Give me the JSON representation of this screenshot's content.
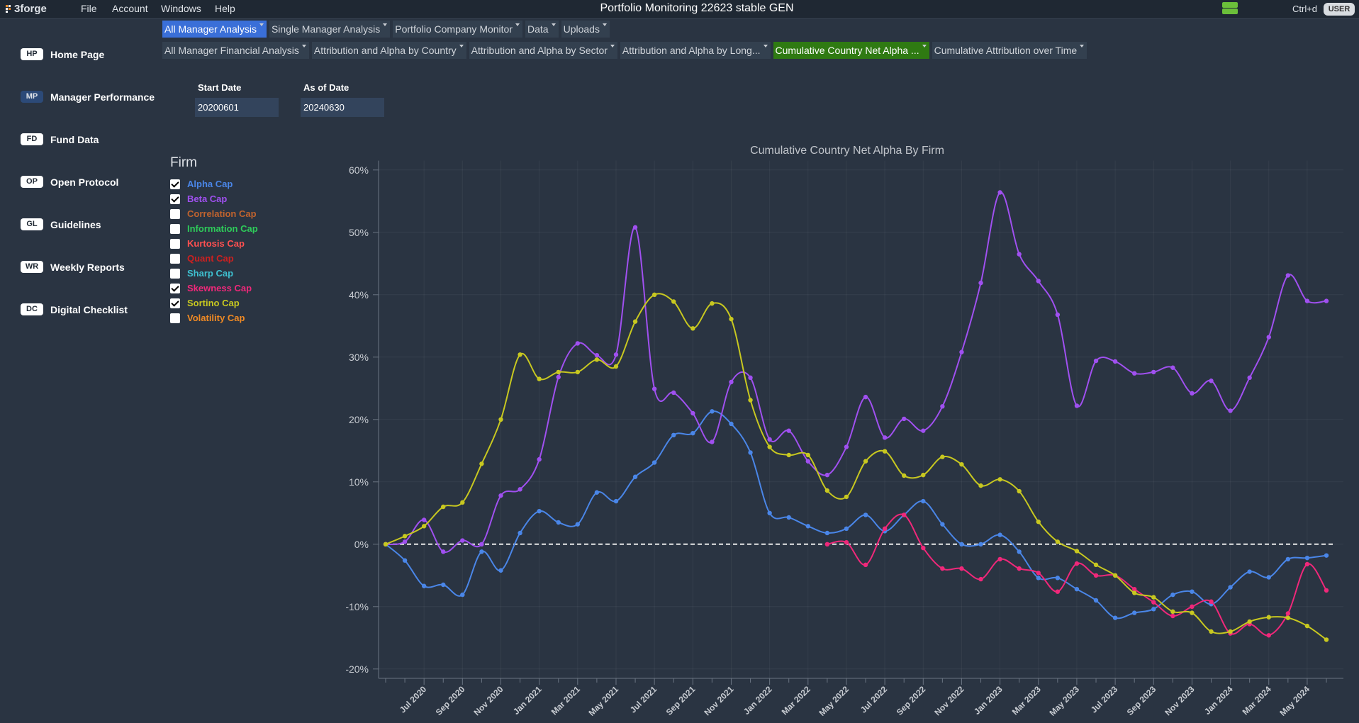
{
  "app": {
    "logo": "3forge",
    "menu": [
      "File",
      "Account",
      "Windows",
      "Help"
    ],
    "title": "Portfolio Monitoring 22623 stable GEN",
    "shortcut": "Ctrl+d",
    "user": "USER"
  },
  "tabs": [
    {
      "label": "All Manager Analysis",
      "selected": true
    },
    {
      "label": "Single Manager Analysis",
      "selected": false
    },
    {
      "label": "Portfolio Company Monitor",
      "selected": false
    },
    {
      "label": "Data",
      "selected": false
    },
    {
      "label": "Uploads",
      "selected": false
    }
  ],
  "subtabs": [
    {
      "label": "All Manager Financial Analysis",
      "selected": false
    },
    {
      "label": "Attribution and Alpha by Country",
      "selected": false
    },
    {
      "label": "Attribution and Alpha by Sector",
      "selected": false
    },
    {
      "label": "Attribution and Alpha by Long...",
      "selected": false
    },
    {
      "label": "Cumulative Country Net Alpha ...",
      "selected": true
    },
    {
      "label": "Cumulative Attribution over Time",
      "selected": false
    }
  ],
  "sidebar": [
    {
      "code": "HP",
      "label": "Home Page"
    },
    {
      "code": "MP",
      "label": "Manager Performance"
    },
    {
      "code": "FD",
      "label": "Fund Data"
    },
    {
      "code": "OP",
      "label": "Open Protocol"
    },
    {
      "code": "GL",
      "label": "Guidelines"
    },
    {
      "code": "WR",
      "label": "Weekly Reports"
    },
    {
      "code": "DC",
      "label": "Digital Checklist"
    }
  ],
  "dates": [
    {
      "label": "Start Date",
      "value": "20200601"
    },
    {
      "label": "As of Date",
      "value": "20240630"
    }
  ],
  "chart_data": {
    "type": "line",
    "title": "Cumulative Country Net Alpha By Firm",
    "legend_title": "Firm",
    "categories": [
      null,
      null,
      "Jul 2020",
      null,
      "Sep 2020",
      null,
      "Nov 2020",
      null,
      "Jan 2021",
      null,
      "Mar 2021",
      null,
      "May 2021",
      null,
      "Jul 2021",
      null,
      "Sep 2021",
      null,
      "Nov 2021",
      null,
      "Jan 2022",
      null,
      "Mar 2022",
      null,
      "May 2022",
      null,
      "Jul 2022",
      null,
      "Sep 2022",
      null,
      "Nov 2022",
      null,
      "Jan 2023",
      null,
      "Mar 2023",
      null,
      "May 2023",
      null,
      "Jul 2023",
      null,
      "Sep 2023",
      null,
      "Nov 2023",
      null,
      "Jan 2024",
      null,
      "Mar 2024",
      null,
      "May 2024",
      null
    ],
    "series": [
      {
        "name": "Alpha Cap",
        "color": "#4a86e8",
        "checked": true,
        "values": [
          0,
          -2.6,
          -6.7,
          -6.5,
          -8.1,
          -1.2,
          -4.2,
          1.8,
          5.3,
          3.5,
          3.2,
          8.3,
          6.9,
          10.8,
          13.1,
          17.5,
          17.8,
          21.3,
          19.3,
          14.7,
          5.0,
          4.3,
          2.9,
          1.8,
          2.5,
          4.7,
          2.1,
          4.7,
          6.9,
          3.2,
          0,
          0,
          1.5,
          -1.2,
          -5.4,
          -5.4,
          -7.2,
          -9.0,
          -11.8,
          -11.0,
          -10.4,
          -8.1,
          -7.6,
          -9.6,
          -6.9,
          -4.4,
          -5.3,
          -2.4,
          -2.2,
          -1.8
        ]
      },
      {
        "name": "Beta Cap",
        "color": "#a050f0",
        "checked": true,
        "values": [
          0,
          0.4,
          3.9,
          -1.2,
          0.6,
          0,
          7.8,
          8.8,
          13.6,
          26.8,
          32.2,
          30.3,
          30.4,
          50.8,
          24.9,
          24.3,
          21.0,
          16.4,
          26.0,
          26.7,
          16.8,
          18.2,
          13.3,
          11.1,
          15.6,
          23.6,
          17.1,
          20.1,
          18.2,
          22.1,
          30.8,
          41.9,
          56.4,
          46.5,
          42.2,
          36.8,
          22.2,
          29.4,
          29.3,
          27.4,
          27.6,
          28.3,
          24.2,
          26.2,
          21.4,
          26.7,
          33.2,
          43.1,
          39.0,
          39.0
        ]
      },
      {
        "name": "Correlation Cap",
        "color": "#c0632e",
        "checked": false
      },
      {
        "name": "Information Cap",
        "color": "#2ecc5a",
        "checked": false
      },
      {
        "name": "Kurtosis Cap",
        "color": "#ff5050",
        "checked": false
      },
      {
        "name": "Quant Cap",
        "color": "#cc2020",
        "checked": false
      },
      {
        "name": "Sharp Cap",
        "color": "#3ec0d0",
        "checked": false
      },
      {
        "name": "Skewness Cap",
        "color": "#f0287a",
        "checked": true,
        "values": [
          null,
          null,
          null,
          null,
          null,
          null,
          null,
          null,
          null,
          null,
          null,
          null,
          null,
          null,
          null,
          null,
          null,
          null,
          null,
          null,
          null,
          null,
          null,
          0,
          0.3,
          -3.3,
          2.5,
          4.7,
          -0.6,
          -3.9,
          -3.9,
          -5.6,
          -2.4,
          -3.9,
          -4.6,
          -7.6,
          -3.1,
          -5.0,
          -5.0,
          -7.2,
          -9.3,
          -11.5,
          -10.0,
          -9.2,
          -14.3,
          -12.8,
          -14.6,
          -11.1,
          -3.2,
          -7.4
        ]
      },
      {
        "name": "Sortino Cap",
        "color": "#c8c820",
        "checked": true,
        "values": [
          0,
          1.3,
          2.9,
          6.0,
          6.7,
          12.9,
          20.0,
          30.4,
          26.5,
          27.6,
          27.6,
          29.6,
          28.5,
          35.7,
          40.0,
          38.9,
          34.6,
          38.6,
          36.1,
          23.1,
          15.6,
          14.3,
          14.3,
          8.6,
          7.6,
          13.3,
          14.9,
          11.0,
          11.1,
          14.0,
          12.8,
          9.4,
          10.4,
          8.5,
          3.6,
          0.4,
          -1.1,
          -3.3,
          -5.0,
          -7.8,
          -8.5,
          -10.8,
          -11.0,
          -14.0,
          -14.0,
          -12.4,
          -11.7,
          -11.8,
          -13.1,
          -15.3
        ]
      },
      {
        "name": "Volatility Cap",
        "color": "#f08a24",
        "checked": false
      }
    ],
    "ylim": [
      -21.5,
      61.5
    ],
    "yticks": [
      {
        "value": -20,
        "label": "-20%"
      },
      {
        "value": -10,
        "label": "-10%"
      },
      {
        "value": 0,
        "label": "0%"
      },
      {
        "value": 10,
        "label": "10%"
      },
      {
        "value": 20,
        "label": "20%"
      },
      {
        "value": 30,
        "label": "30%"
      },
      {
        "value": 40,
        "label": "40%"
      },
      {
        "value": 50,
        "label": "50%"
      },
      {
        "value": 60,
        "label": "60%"
      }
    ],
    "grid": true,
    "reference_line": 0
  }
}
